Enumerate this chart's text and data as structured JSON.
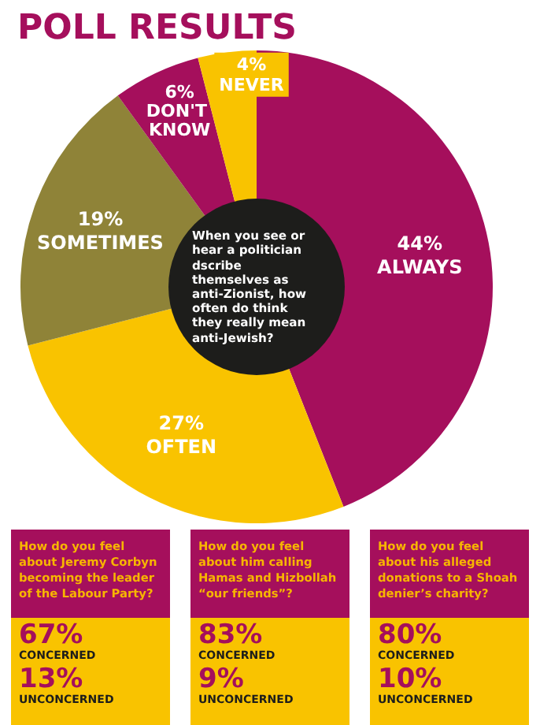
{
  "chart_data": [
    {
      "type": "donut",
      "title": "POLL RESULTS",
      "categories": [
        "ALWAYS",
        "OFTEN",
        "SOMETIMES",
        "DON'T KNOW",
        "NEVER"
      ],
      "values": [
        44,
        27,
        19,
        6,
        4
      ],
      "value_labels": [
        "44%",
        "27%",
        "19%",
        "6%",
        "4%"
      ],
      "colors": [
        "#a50f5c",
        "#f9c300",
        "#8f8338",
        "#a50f5c",
        "#f9c300"
      ],
      "annotations": [
        "When you see or hear a politician dscribe themselves as anti-Zionist, how often do think they really mean anti-Jewish?"
      ]
    },
    {
      "type": "other",
      "title": "How do you feel about Jeremy Corbyn becoming the leader of the Labour Party?",
      "annotations": [
        "67%",
        "CONCERNED",
        "13%",
        "UNCONCERNED"
      ]
    },
    {
      "type": "other",
      "title": "How do you feel about him calling Hamas and Hizbollah “our friends”?",
      "annotations": [
        "83%",
        "CONCERNED",
        "9%",
        "UNCONCERNED"
      ]
    },
    {
      "type": "other",
      "title": "How do you feel about his alleged donations to a Shoah denier’s charity?",
      "annotations": [
        "80%",
        "CONCERNED",
        "10%",
        "UNCONCERNED"
      ]
    }
  ]
}
